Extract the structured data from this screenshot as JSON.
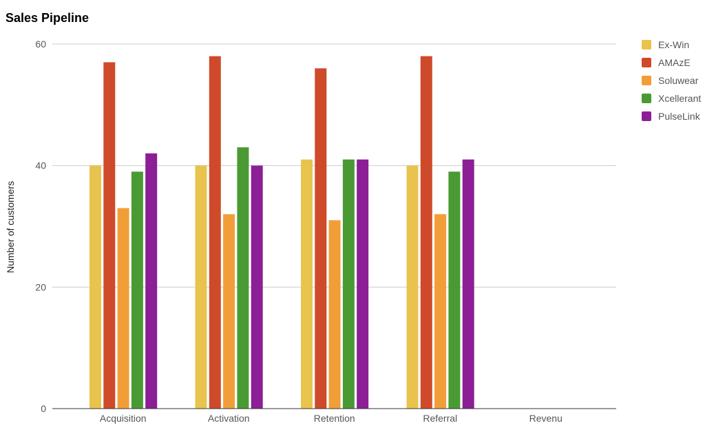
{
  "chart_data": {
    "type": "bar",
    "title": "Sales Pipeline",
    "xlabel": "",
    "ylabel": "Number of customers",
    "ylim": [
      0,
      60
    ],
    "yticks": [
      0,
      20,
      40,
      60
    ],
    "grid": true,
    "legend_position": "right",
    "categories": [
      "Acquisition",
      "Activation",
      "Retention",
      "Referral",
      "Revenu"
    ],
    "series": [
      {
        "name": "Ex-Win",
        "color": "#E8C44F",
        "values": [
          40,
          40,
          41,
          40,
          null
        ]
      },
      {
        "name": "AMAzE",
        "color": "#CF4A2A",
        "values": [
          57,
          58,
          56,
          58,
          null
        ]
      },
      {
        "name": "Soluwear",
        "color": "#F19E38",
        "values": [
          33,
          32,
          31,
          32,
          null
        ]
      },
      {
        "name": "Xcellerant",
        "color": "#4A9A34",
        "values": [
          39,
          43,
          41,
          39,
          null
        ]
      },
      {
        "name": "PulseLink",
        "color": "#8C1F96",
        "values": [
          42,
          40,
          41,
          41,
          null
        ]
      }
    ]
  }
}
